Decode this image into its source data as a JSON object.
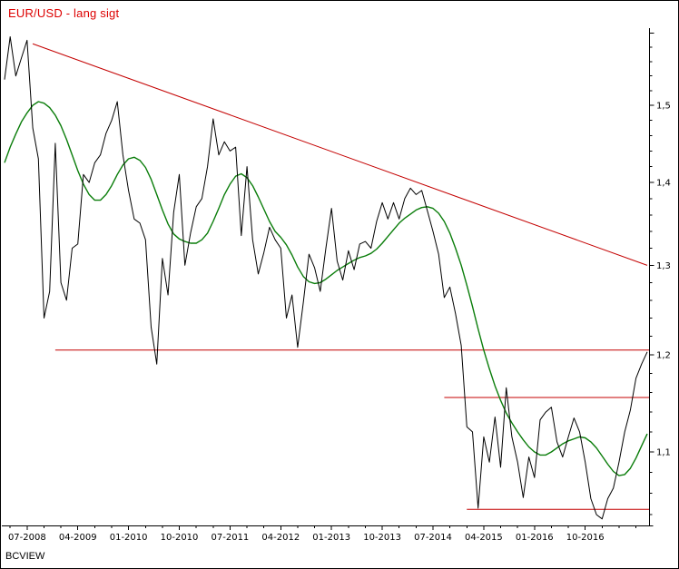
{
  "title": "EUR/USD - lang sigt",
  "watermark": "BCVIEW",
  "colors": {
    "title_red": "#dd0000",
    "trend_red": "#c40000",
    "ma_green": "#0a7d0a",
    "price_black": "#000000",
    "background": "#ffffff",
    "border": "#000000"
  },
  "chart_data": {
    "type": "line",
    "title": "EUR/USD - lang sigt",
    "x_start": "2008-03",
    "x_end": "2017-09",
    "frequency": "monthly",
    "x_ticks": [
      {
        "month": "2008-07",
        "label": "07-2008"
      },
      {
        "month": "2009-04",
        "label": "04-2009"
      },
      {
        "month": "2010-01",
        "label": "01-2010"
      },
      {
        "month": "2010-10",
        "label": "10-2010"
      },
      {
        "month": "2011-07",
        "label": "07-2011"
      },
      {
        "month": "2012-04",
        "label": "04-2012"
      },
      {
        "month": "2013-01",
        "label": "01-2013"
      },
      {
        "month": "2013-10",
        "label": "10-2013"
      },
      {
        "month": "2014-07",
        "label": "07-2014"
      },
      {
        "month": "2015-04",
        "label": "04-2015"
      },
      {
        "month": "2016-01",
        "label": "01-2016"
      },
      {
        "month": "2016-10",
        "label": "10-2016"
      }
    ],
    "y_axis": {
      "side": "right",
      "scale": "log",
      "min": 1.03,
      "max": 1.61,
      "grid": false,
      "ticks": [
        {
          "value": 1.6,
          "label": ""
        },
        {
          "value": 1.5,
          "label": "1,5"
        },
        {
          "value": 1.4,
          "label": "1,4"
        },
        {
          "value": 1.3,
          "label": "1,3"
        },
        {
          "value": 1.2,
          "label": "1,2"
        },
        {
          "value": 1.1,
          "label": "1,1"
        }
      ]
    },
    "series": [
      {
        "name": "EUR/USD price",
        "color_key": "price_black",
        "values": [
          1.535,
          1.595,
          1.54,
          1.565,
          1.59,
          1.47,
          1.43,
          1.24,
          1.27,
          1.45,
          1.28,
          1.26,
          1.32,
          1.325,
          1.41,
          1.4,
          1.425,
          1.435,
          1.463,
          1.48,
          1.505,
          1.435,
          1.39,
          1.355,
          1.35,
          1.33,
          1.23,
          1.19,
          1.308,
          1.266,
          1.363,
          1.41,
          1.3,
          1.338,
          1.37,
          1.38,
          1.42,
          1.482,
          1.435,
          1.452,
          1.44,
          1.445,
          1.335,
          1.42,
          1.33,
          1.29,
          1.315,
          1.345,
          1.33,
          1.32,
          1.24,
          1.266,
          1.208,
          1.258,
          1.313,
          1.297,
          1.27,
          1.32,
          1.368,
          1.305,
          1.283,
          1.317,
          1.295,
          1.325,
          1.328,
          1.32,
          1.352,
          1.375,
          1.355,
          1.375,
          1.355,
          1.38,
          1.393,
          1.385,
          1.39,
          1.365,
          1.34,
          1.313,
          1.263,
          1.275,
          1.245,
          1.21,
          1.125,
          1.12,
          1.046,
          1.115,
          1.09,
          1.135,
          1.085,
          1.165,
          1.115,
          1.09,
          1.056,
          1.095,
          1.075,
          1.132,
          1.14,
          1.145,
          1.11,
          1.095,
          1.115,
          1.134,
          1.12,
          1.09,
          1.055,
          1.04,
          1.036,
          1.055,
          1.065,
          1.09,
          1.12,
          1.142,
          1.175,
          1.19,
          1.203
        ]
      },
      {
        "name": "long moving average",
        "color_key": "ma_green",
        "values": [
          1.425,
          1.445,
          1.462,
          1.478,
          1.49,
          1.5,
          1.505,
          1.503,
          1.497,
          1.487,
          1.473,
          1.455,
          1.435,
          1.415,
          1.398,
          1.385,
          1.378,
          1.378,
          1.385,
          1.396,
          1.41,
          1.422,
          1.43,
          1.432,
          1.428,
          1.419,
          1.404,
          1.385,
          1.366,
          1.349,
          1.337,
          1.331,
          1.328,
          1.326,
          1.326,
          1.33,
          1.338,
          1.352,
          1.368,
          1.385,
          1.398,
          1.408,
          1.411,
          1.406,
          1.396,
          1.382,
          1.367,
          1.352,
          1.34,
          1.333,
          1.324,
          1.312,
          1.298,
          1.287,
          1.281,
          1.279,
          1.28,
          1.284,
          1.289,
          1.294,
          1.298,
          1.302,
          1.306,
          1.309,
          1.311,
          1.314,
          1.319,
          1.326,
          1.334,
          1.342,
          1.35,
          1.356,
          1.361,
          1.366,
          1.369,
          1.37,
          1.368,
          1.362,
          1.352,
          1.338,
          1.32,
          1.3,
          1.277,
          1.253,
          1.228,
          1.205,
          1.185,
          1.167,
          1.152,
          1.139,
          1.129,
          1.12,
          1.112,
          1.105,
          1.1,
          1.097,
          1.097,
          1.1,
          1.104,
          1.108,
          1.111,
          1.113,
          1.115,
          1.114,
          1.11,
          1.104,
          1.096,
          1.088,
          1.081,
          1.077,
          1.078,
          1.084,
          1.094,
          1.106,
          1.118
        ]
      }
    ],
    "annotations": {
      "trend_line": {
        "description": "falling red resistance trendline",
        "from": {
          "month": "2008-08",
          "value": 1.585
        },
        "to": {
          "month": "2017-09",
          "value": 1.3
        }
      },
      "horizontal_lines": [
        {
          "value": 1.205,
          "from_month": "2008-12",
          "to_month": "2017-09"
        },
        {
          "value": 1.155,
          "from_month": "2014-09",
          "to_month": "2017-09"
        },
        {
          "value": 1.045,
          "from_month": "2015-01",
          "to_month": "2017-09"
        }
      ]
    }
  }
}
